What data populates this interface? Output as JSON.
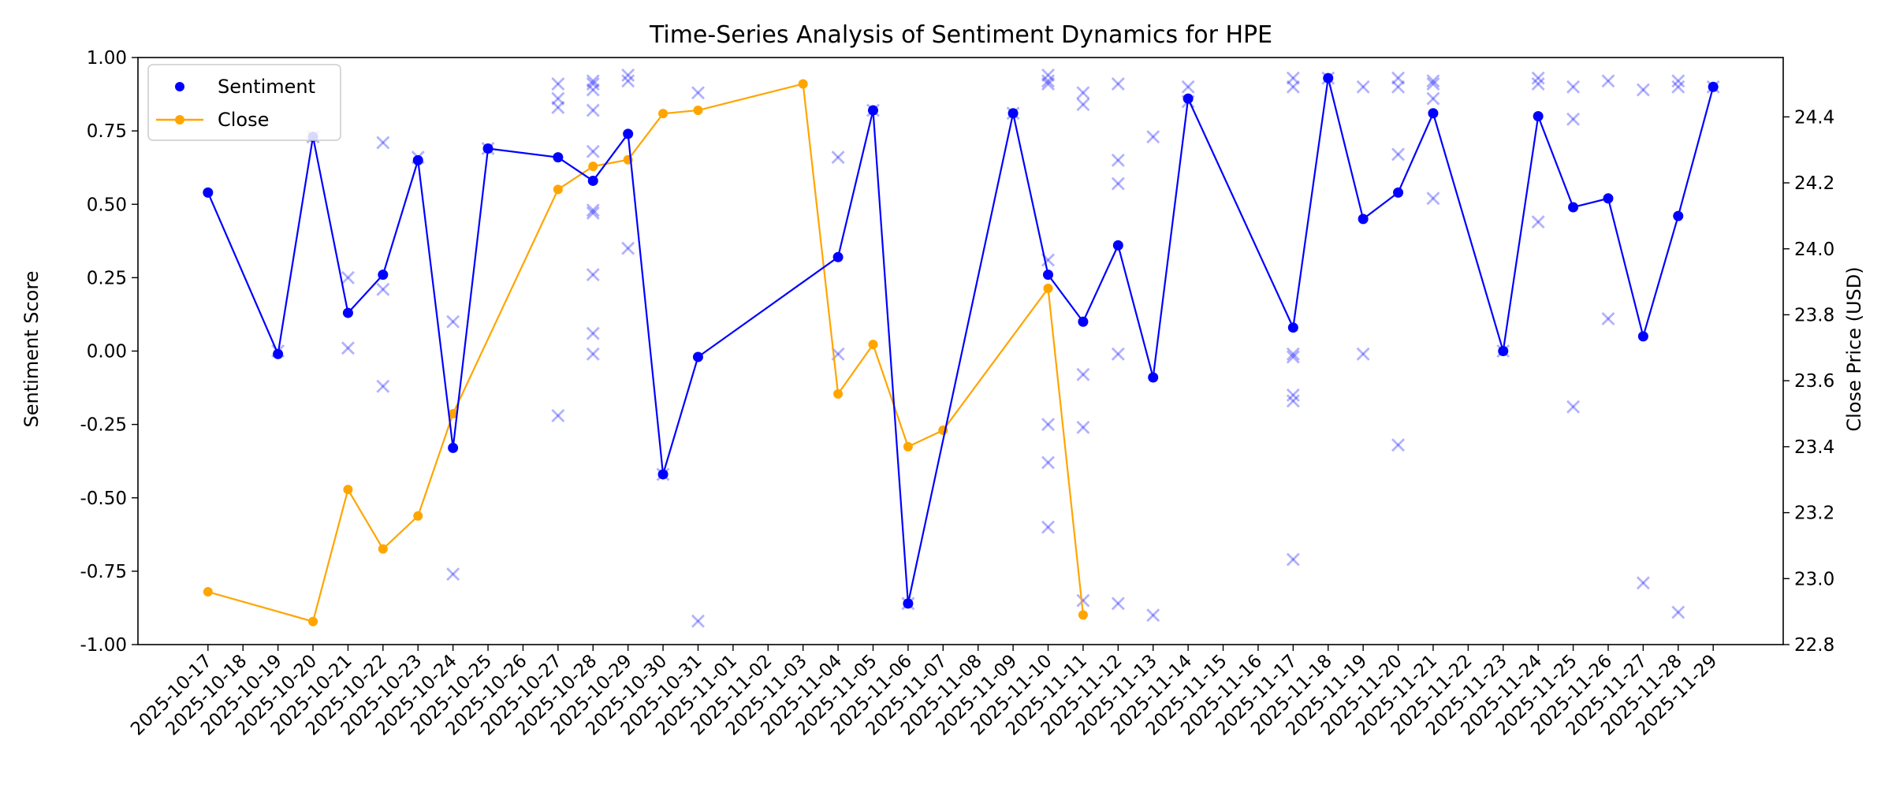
{
  "chart_data": {
    "type": "line",
    "title": "Time-Series Analysis of Sentiment Dynamics for HPE",
    "xlabel": "",
    "ylabel": "Sentiment Score",
    "y2label": "Close Price (USD)",
    "ylim": [
      -1.0,
      1.0
    ],
    "y2lim": [
      22.8,
      24.58
    ],
    "x_range": [
      "2025-10-15",
      "2025-12-01"
    ],
    "yticks": [
      "-1.00",
      "-0.75",
      "-0.50",
      "-0.25",
      "0.00",
      "0.25",
      "0.50",
      "0.75",
      "1.00"
    ],
    "y2ticks": [
      "22.8",
      "23.0",
      "23.2",
      "23.4",
      "23.6",
      "23.8",
      "24.0",
      "24.2",
      "24.4"
    ],
    "x_tick_labels": [
      "2025-10-17",
      "2025-10-18",
      "2025-10-19",
      "2025-10-20",
      "2025-10-21",
      "2025-10-22",
      "2025-10-23",
      "2025-10-24",
      "2025-10-25",
      "2025-10-26",
      "2025-10-27",
      "2025-10-28",
      "2025-10-29",
      "2025-10-30",
      "2025-10-31",
      "2025-11-01",
      "2025-11-02",
      "2025-11-03",
      "2025-11-04",
      "2025-11-05",
      "2025-11-06",
      "2025-11-07",
      "2025-11-08",
      "2025-11-09",
      "2025-11-10",
      "2025-11-11",
      "2025-11-12",
      "2025-11-13",
      "2025-11-14",
      "2025-11-15",
      "2025-11-16",
      "2025-11-17",
      "2025-11-18",
      "2025-11-19",
      "2025-11-20",
      "2025-11-21",
      "2025-11-22",
      "2025-11-23",
      "2025-11-24",
      "2025-11-25",
      "2025-11-26",
      "2025-11-27",
      "2025-11-28",
      "2025-11-29"
    ],
    "grid": false,
    "legend_position": "upper-left",
    "colors": {
      "sentiment": "#0000ff",
      "close": "#ffa500",
      "raw": "#0000ff"
    },
    "series": [
      {
        "name": "Sentiment",
        "marker": "circle",
        "points": [
          [
            "2025-10-17",
            0.54
          ],
          [
            "2025-10-19",
            -0.01
          ],
          [
            "2025-10-20",
            0.73
          ],
          [
            "2025-10-21",
            0.13
          ],
          [
            "2025-10-22",
            0.26
          ],
          [
            "2025-10-23",
            0.65
          ],
          [
            "2025-10-24",
            -0.33
          ],
          [
            "2025-10-25",
            0.69
          ],
          [
            "2025-10-27",
            0.66
          ],
          [
            "2025-10-28",
            0.58
          ],
          [
            "2025-10-29",
            0.74
          ],
          [
            "2025-10-30",
            -0.42
          ],
          [
            "2025-10-31",
            -0.02
          ],
          [
            "2025-11-04",
            0.32
          ],
          [
            "2025-11-05",
            0.82
          ],
          [
            "2025-11-06",
            -0.86
          ],
          [
            "2025-11-09",
            0.81
          ],
          [
            "2025-11-10",
            0.26
          ],
          [
            "2025-11-11",
            0.1
          ],
          [
            "2025-11-12",
            0.36
          ],
          [
            "2025-11-13",
            -0.09
          ],
          [
            "2025-11-14",
            0.86
          ],
          [
            "2025-11-17",
            0.08
          ],
          [
            "2025-11-18",
            0.93
          ],
          [
            "2025-11-19",
            0.45
          ],
          [
            "2025-11-20",
            0.54
          ],
          [
            "2025-11-21",
            0.81
          ],
          [
            "2025-11-23",
            0.0
          ],
          [
            "2025-11-24",
            0.8
          ],
          [
            "2025-11-25",
            0.49
          ],
          [
            "2025-11-26",
            0.52
          ],
          [
            "2025-11-27",
            0.05
          ],
          [
            "2025-11-28",
            0.46
          ],
          [
            "2025-11-29",
            0.9
          ]
        ]
      },
      {
        "name": "Close",
        "axis": "right",
        "marker": "circle",
        "points": [
          [
            "2025-10-17",
            22.96
          ],
          [
            "2025-10-20",
            22.87
          ],
          [
            "2025-10-21",
            23.27
          ],
          [
            "2025-10-22",
            23.09
          ],
          [
            "2025-10-23",
            23.19
          ],
          [
            "2025-10-24",
            23.5
          ],
          [
            "2025-10-27",
            24.18
          ],
          [
            "2025-10-28",
            24.25
          ],
          [
            "2025-10-29",
            24.27
          ],
          [
            "2025-10-30",
            24.41
          ],
          [
            "2025-10-31",
            24.42
          ],
          [
            "2025-11-03",
            24.5
          ],
          [
            "2025-11-04",
            23.56
          ],
          [
            "2025-11-05",
            23.71
          ],
          [
            "2025-11-06",
            23.4
          ],
          [
            "2025-11-07",
            23.45
          ],
          [
            "2025-11-10",
            23.88
          ],
          [
            "2025-11-11",
            22.89
          ]
        ]
      },
      {
        "marker": "x",
        "points": [
          [
            "2025-10-19",
            0.0
          ],
          [
            "2025-10-20",
            0.73
          ],
          [
            "2025-10-21",
            0.25
          ],
          [
            "2025-10-21",
            0.01
          ],
          [
            "2025-10-22",
            0.71
          ],
          [
            "2025-10-22",
            0.21
          ],
          [
            "2025-10-22",
            -0.12
          ],
          [
            "2025-10-23",
            0.66
          ],
          [
            "2025-10-24",
            0.1
          ],
          [
            "2025-10-24",
            -0.76
          ],
          [
            "2025-10-25",
            0.69
          ],
          [
            "2025-10-27",
            0.91
          ],
          [
            "2025-10-27",
            0.86
          ],
          [
            "2025-10-27",
            0.83
          ],
          [
            "2025-10-27",
            -0.22
          ],
          [
            "2025-10-28",
            0.92
          ],
          [
            "2025-10-28",
            0.91
          ],
          [
            "2025-10-28",
            0.89
          ],
          [
            "2025-10-28",
            0.82
          ],
          [
            "2025-10-28",
            0.68
          ],
          [
            "2025-10-28",
            0.48
          ],
          [
            "2025-10-28",
            0.47
          ],
          [
            "2025-10-28",
            0.26
          ],
          [
            "2025-10-28",
            0.06
          ],
          [
            "2025-10-28",
            -0.01
          ],
          [
            "2025-10-29",
            0.94
          ],
          [
            "2025-10-29",
            0.92
          ],
          [
            "2025-10-29",
            0.35
          ],
          [
            "2025-10-30",
            -0.42
          ],
          [
            "2025-10-31",
            0.88
          ],
          [
            "2025-10-31",
            -0.92
          ],
          [
            "2025-11-04",
            0.66
          ],
          [
            "2025-11-04",
            -0.01
          ],
          [
            "2025-11-05",
            0.82
          ],
          [
            "2025-11-06",
            -0.86
          ],
          [
            "2025-11-09",
            0.81
          ],
          [
            "2025-11-10",
            0.94
          ],
          [
            "2025-11-10",
            0.92
          ],
          [
            "2025-11-10",
            0.91
          ],
          [
            "2025-11-10",
            0.31
          ],
          [
            "2025-11-10",
            -0.25
          ],
          [
            "2025-11-10",
            -0.38
          ],
          [
            "2025-11-10",
            -0.6
          ],
          [
            "2025-11-11",
            0.88
          ],
          [
            "2025-11-11",
            0.84
          ],
          [
            "2025-11-11",
            -0.08
          ],
          [
            "2025-11-11",
            -0.26
          ],
          [
            "2025-11-11",
            -0.85
          ],
          [
            "2025-11-12",
            0.91
          ],
          [
            "2025-11-12",
            0.65
          ],
          [
            "2025-11-12",
            0.57
          ],
          [
            "2025-11-12",
            -0.01
          ],
          [
            "2025-11-12",
            -0.86
          ],
          [
            "2025-11-13",
            0.73
          ],
          [
            "2025-11-13",
            -0.9
          ],
          [
            "2025-11-14",
            0.9
          ],
          [
            "2025-11-14",
            0.85
          ],
          [
            "2025-11-17",
            0.93
          ],
          [
            "2025-11-17",
            0.9
          ],
          [
            "2025-11-17",
            -0.01
          ],
          [
            "2025-11-17",
            -0.02
          ],
          [
            "2025-11-17",
            -0.15
          ],
          [
            "2025-11-17",
            -0.17
          ],
          [
            "2025-11-17",
            -0.71
          ],
          [
            "2025-11-18",
            0.93
          ],
          [
            "2025-11-19",
            0.9
          ],
          [
            "2025-11-19",
            -0.01
          ],
          [
            "2025-11-20",
            0.93
          ],
          [
            "2025-11-20",
            0.9
          ],
          [
            "2025-11-20",
            0.67
          ],
          [
            "2025-11-20",
            -0.32
          ],
          [
            "2025-11-21",
            0.92
          ],
          [
            "2025-11-21",
            0.91
          ],
          [
            "2025-11-21",
            0.86
          ],
          [
            "2025-11-21",
            0.52
          ],
          [
            "2025-11-23",
            0.0
          ],
          [
            "2025-11-24",
            0.93
          ],
          [
            "2025-11-24",
            0.91
          ],
          [
            "2025-11-24",
            0.44
          ],
          [
            "2025-11-25",
            0.9
          ],
          [
            "2025-11-25",
            0.79
          ],
          [
            "2025-11-25",
            -0.19
          ],
          [
            "2025-11-26",
            0.92
          ],
          [
            "2025-11-26",
            0.11
          ],
          [
            "2025-11-27",
            0.89
          ],
          [
            "2025-11-27",
            -0.79
          ],
          [
            "2025-11-28",
            0.92
          ],
          [
            "2025-11-28",
            0.9
          ],
          [
            "2025-11-28",
            -0.89
          ],
          [
            "2025-11-29",
            0.9
          ]
        ]
      }
    ]
  }
}
